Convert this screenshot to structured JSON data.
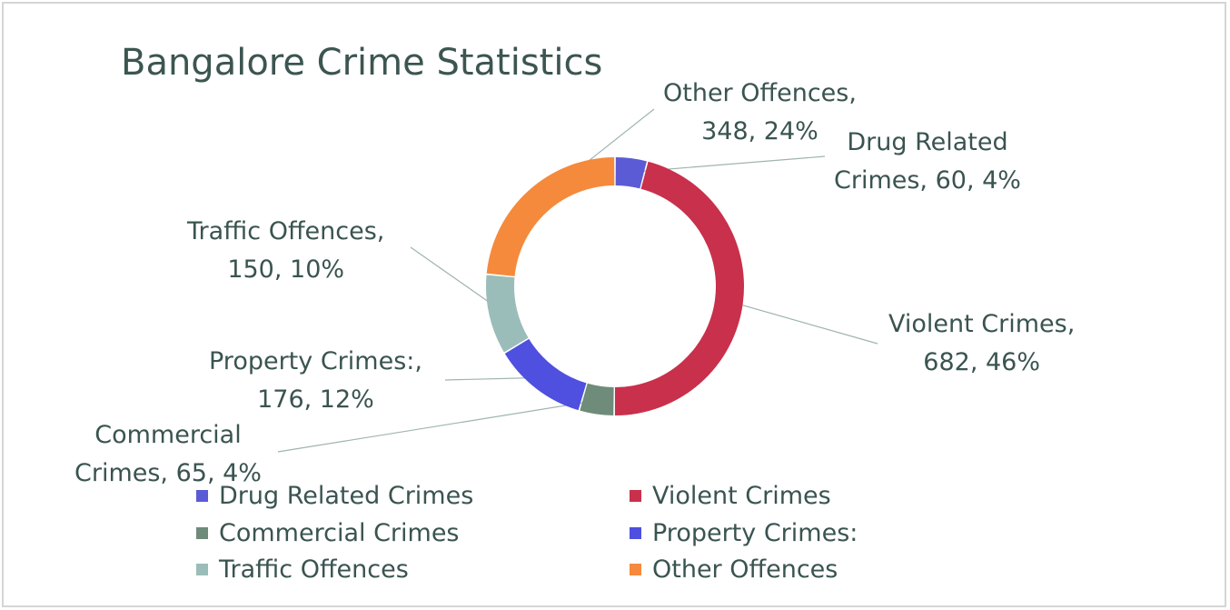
{
  "chart_data": {
    "type": "pie",
    "title": "Bangalore Crime Statistics",
    "slices": [
      {
        "name": "Drug Related Crimes",
        "value": 60,
        "percent": "4%",
        "color": "#5b5bd6",
        "label_line1": "Drug Related",
        "label_line2": "Crimes, 60, 4%"
      },
      {
        "name": "Violent Crimes",
        "value": 682,
        "percent": "46%",
        "color": "#c8304c",
        "label_line1": "Violent Crimes,",
        "label_line2": "682, 46%"
      },
      {
        "name": "Commercial Crimes",
        "value": 65,
        "percent": "4%",
        "color": "#6f8b7a",
        "label_line1": "Commercial",
        "label_line2": "Crimes, 65, 4%"
      },
      {
        "name": "Property Crimes:",
        "value": 176,
        "percent": "12%",
        "color": "#4f4fe0",
        "label_line1": "Property Crimes:,",
        "label_line2": "176, 12%"
      },
      {
        "name": "Traffic Offences",
        "value": 150,
        "percent": "10%",
        "color": "#9bbdb9",
        "label_line1": "Traffic Offences,",
        "label_line2": "150, 10%"
      },
      {
        "name": "Other Offences",
        "value": 348,
        "percent": "24%",
        "color": "#f58a3c",
        "label_line1": "Other Offences,",
        "label_line2": "348, 24%"
      }
    ],
    "legend": {
      "position": "bottom"
    }
  }
}
